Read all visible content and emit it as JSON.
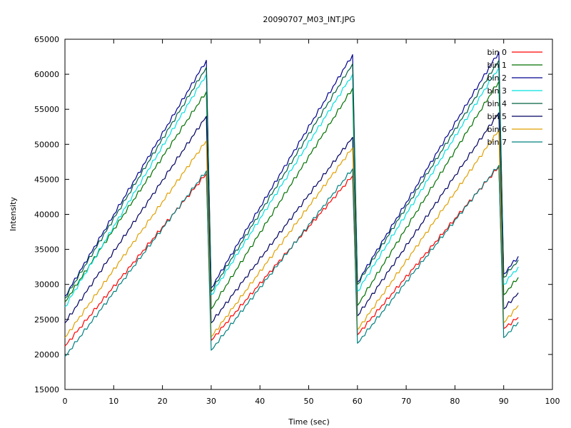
{
  "chart_data": {
    "type": "line",
    "title": "20090707_M03_INT.JPG",
    "xlabel": "Time (sec)",
    "ylabel": "Intensity",
    "xlim": [
      0,
      100
    ],
    "ylim": [
      15000,
      65000
    ],
    "x_ticks": [
      0,
      10,
      20,
      30,
      40,
      50,
      60,
      70,
      80,
      90,
      100
    ],
    "y_ticks": [
      15000,
      20000,
      25000,
      30000,
      35000,
      40000,
      45000,
      50000,
      55000,
      60000,
      65000
    ],
    "grid": false,
    "legend_position": "top-right",
    "x": [
      0,
      29,
      30,
      59,
      60,
      89,
      90,
      93
    ],
    "series": [
      {
        "name": "bin 0",
        "color": "#ff0000",
        "values": [
          21200,
          45800,
          22000,
          45500,
          22800,
          46800,
          23700,
          25300
        ]
      },
      {
        "name": "bin 1",
        "color": "#007000",
        "values": [
          27500,
          57500,
          26500,
          58000,
          27000,
          59000,
          28500,
          31000
        ]
      },
      {
        "name": "bin 2",
        "color": "#000090",
        "values": [
          28300,
          62000,
          29500,
          62800,
          30300,
          63200,
          31500,
          34000
        ]
      },
      {
        "name": "bin 3",
        "color": "#00e0e0",
        "values": [
          26800,
          60000,
          28500,
          60000,
          29000,
          61000,
          30000,
          32500
        ]
      },
      {
        "name": "bin 4",
        "color": "#006040",
        "values": [
          28000,
          61000,
          29000,
          61500,
          30000,
          62000,
          31000,
          33500
        ]
      },
      {
        "name": "bin 5",
        "color": "#000060",
        "values": [
          24500,
          54000,
          24500,
          51000,
          25500,
          54500,
          26500,
          28800
        ]
      },
      {
        "name": "bin 6",
        "color": "#e0a000",
        "values": [
          22400,
          50500,
          22500,
          49500,
          23500,
          52000,
          24500,
          27000
        ]
      },
      {
        "name": "bin 7",
        "color": "#008080",
        "values": [
          19700,
          46200,
          20600,
          46500,
          21600,
          47000,
          22400,
          24600
        ]
      }
    ]
  }
}
